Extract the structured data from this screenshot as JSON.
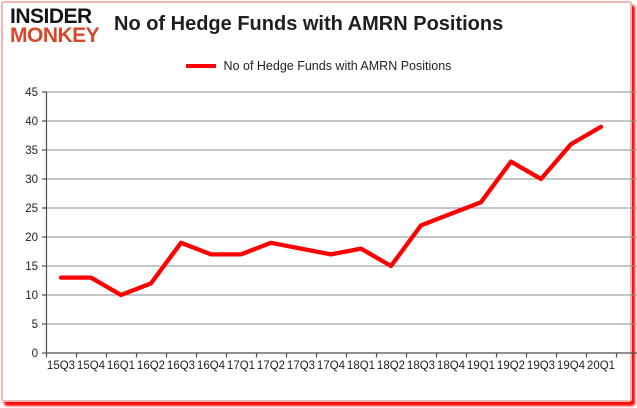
{
  "logo": {
    "line1": "INSIDER",
    "line2": "MONKEY"
  },
  "title": "No of Hedge Funds with AMRN Positions",
  "legend": {
    "label": "No of Hedge Funds with AMRN Positions"
  },
  "chart_data": {
    "type": "line",
    "title": "No of Hedge Funds with AMRN Positions",
    "categories": [
      "15Q3",
      "15Q4",
      "16Q1",
      "16Q2",
      "16Q3",
      "16Q4",
      "17Q1",
      "17Q2",
      "17Q3",
      "17Q4",
      "18Q1",
      "18Q2",
      "18Q3",
      "18Q4",
      "19Q1",
      "19Q2",
      "19Q3",
      "19Q4",
      "20Q1"
    ],
    "series": [
      {
        "name": "No of Hedge Funds with AMRN Positions",
        "color": "#ff0000",
        "values": [
          13,
          13,
          10,
          12,
          19,
          17,
          17,
          19,
          18,
          17,
          18,
          15,
          22,
          24,
          26,
          33,
          30,
          36,
          39
        ]
      }
    ],
    "xlabel": "",
    "ylabel": "",
    "ylim": [
      0,
      45
    ],
    "ytick_step": 5,
    "grid": true,
    "legend_position": "top"
  },
  "colors": {
    "line": "#ff0000",
    "gridline": "#8e8e8e",
    "axis": "#4d4d4d",
    "text": "#1f1f1f",
    "logo_monkey": "#d9472b",
    "card_border": "#f0b6af",
    "card_shadow": "#fb0b06"
  }
}
